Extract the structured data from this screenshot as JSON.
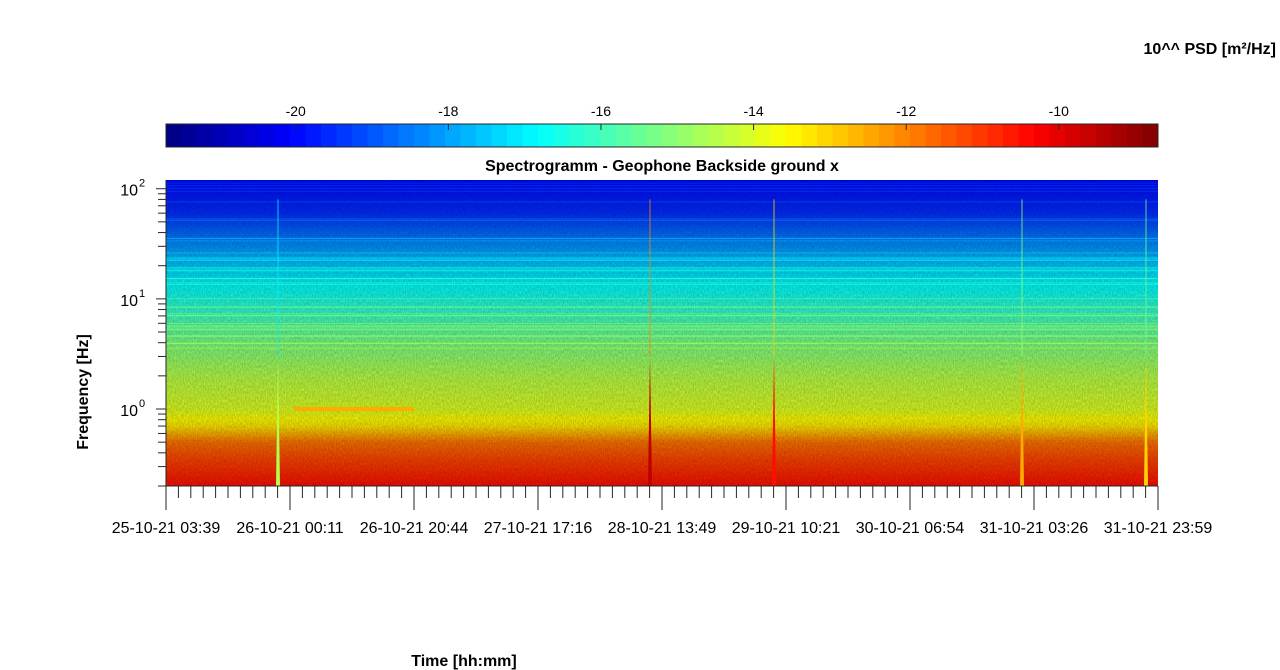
{
  "chart_data": {
    "type": "heatmap",
    "title": "Spectrogramm - Geophone Backside ground x",
    "xlabel": "Time [hh:mm]",
    "ylabel": "Frequency [Hz]",
    "colorbar": {
      "label": "10^^ PSD [m²/Hz]",
      "range": [
        -21.7,
        -8.7
      ],
      "ticks": [
        -20,
        -18,
        -16,
        -14,
        -12,
        -10
      ],
      "tick_labels": [
        "-20",
        "-18",
        "-16",
        "-14",
        "-12",
        "-10"
      ],
      "colormap": "jet",
      "location": "top"
    },
    "x_tick_labels": [
      "25-10-21 03:39",
      "26-10-21 00:11",
      "26-10-21 20:44",
      "27-10-21 17:16",
      "28-10-21 13:49",
      "29-10-21 10:21",
      "30-10-21 06:54",
      "31-10-21 03:26",
      "31-10-21 23:59"
    ],
    "x_minor_ticks_per_interval": 10,
    "y_scale": "log",
    "ylim_hz": [
      0.2,
      120
    ],
    "y_major_ticks": [
      {
        "value": 1,
        "base": "10",
        "exp": "0"
      },
      {
        "value": 10,
        "base": "10",
        "exp": "1"
      },
      {
        "value": 100,
        "base": "10",
        "exp": "2"
      }
    ],
    "psd_profile_by_frequency": [
      {
        "hz": 0.2,
        "log10_psd": -10.5
      },
      {
        "hz": 0.35,
        "log10_psd": -11.2
      },
      {
        "hz": 0.5,
        "log10_psd": -11.8
      },
      {
        "hz": 0.7,
        "log10_psd": -13.3
      },
      {
        "hz": 1.0,
        "log10_psd": -14.0
      },
      {
        "hz": 2.0,
        "log10_psd": -14.5
      },
      {
        "hz": 4.0,
        "log10_psd": -15.3
      },
      {
        "hz": 8.0,
        "log10_psd": -16.2
      },
      {
        "hz": 15.0,
        "log10_psd": -17.0
      },
      {
        "hz": 30.0,
        "log10_psd": -18.2
      },
      {
        "hz": 60.0,
        "log10_psd": -19.5
      },
      {
        "hz": 120.0,
        "log10_psd": -20.0
      }
    ],
    "events": [
      {
        "near_x_tick": "26-10-21 00:11",
        "log10_psd": -14.5
      },
      {
        "near_x_tick": "28-10-21 13:49",
        "log10_psd": -9.5
      },
      {
        "near_x_tick": "29-10-21 10:21",
        "log10_psd": -10.5
      },
      {
        "near_x_tick": "31-10-21 03:26",
        "log10_psd": -12.5
      },
      {
        "near_x_tick": "31-10-21 23:59",
        "log10_psd": -13.0
      }
    ],
    "tonal_line": {
      "hz": 1.0,
      "from_tick": "26-10-21 00:11",
      "to_tick": "26-10-21 20:44",
      "log10_psd": -12.5
    }
  }
}
